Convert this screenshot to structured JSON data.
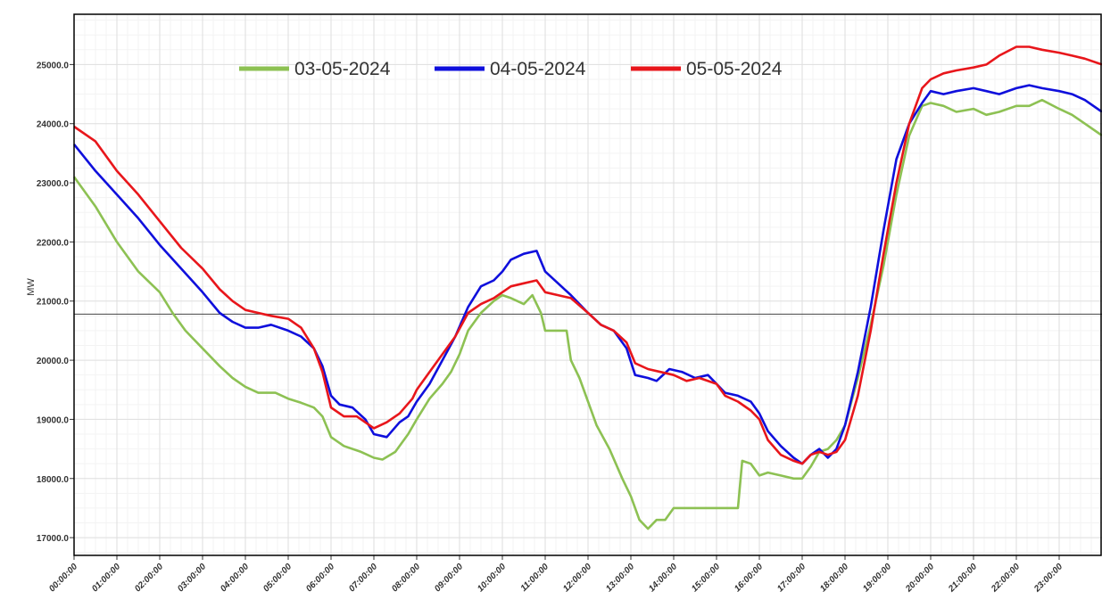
{
  "chart_data": {
    "type": "line",
    "title": "",
    "xlabel": "",
    "ylabel": "MW",
    "x_tick_labels": [
      "00:00:00",
      "01:00:00",
      "02:00:00",
      "03:00:00",
      "04:00:00",
      "05:00:00",
      "06:00:00",
      "07:00:00",
      "08:00:00",
      "09:00:00",
      "10:00:00",
      "11:00:00",
      "12:00:00",
      "13:00:00",
      "14:00:00",
      "15:00:00",
      "16:00:00",
      "17:00:00",
      "18:00:00",
      "19:00:00",
      "20:00:00",
      "21:00:00",
      "22:00:00",
      "23:00:00"
    ],
    "y_tick_labels": [
      "17000.0",
      "18000.0",
      "19000.0",
      "20000.0",
      "21000.0",
      "22000.0",
      "23000.0",
      "24000.0",
      "25000.0"
    ],
    "xlim": [
      0,
      24
    ],
    "ylim": [
      16700,
      25850
    ],
    "grid": true,
    "legend_position": "top",
    "reference_line": 20780,
    "series": [
      {
        "name": "03-05-2024",
        "color": "#8dc153",
        "points": [
          [
            0,
            23100
          ],
          [
            0.5,
            22600
          ],
          [
            1,
            22000
          ],
          [
            1.5,
            21500
          ],
          [
            2,
            21150
          ],
          [
            2.3,
            20800
          ],
          [
            2.6,
            20500
          ],
          [
            3,
            20200
          ],
          [
            3.4,
            19900
          ],
          [
            3.7,
            19700
          ],
          [
            4,
            19550
          ],
          [
            4.3,
            19450
          ],
          [
            4.7,
            19450
          ],
          [
            5,
            19350
          ],
          [
            5.3,
            19280
          ],
          [
            5.6,
            19200
          ],
          [
            5.8,
            19050
          ],
          [
            6,
            18700
          ],
          [
            6.3,
            18550
          ],
          [
            6.7,
            18450
          ],
          [
            7,
            18350
          ],
          [
            7.2,
            18320
          ],
          [
            7.5,
            18450
          ],
          [
            7.8,
            18750
          ],
          [
            8,
            19000
          ],
          [
            8.3,
            19350
          ],
          [
            8.6,
            19600
          ],
          [
            8.8,
            19800
          ],
          [
            9,
            20100
          ],
          [
            9.2,
            20500
          ],
          [
            9.5,
            20800
          ],
          [
            9.8,
            21000
          ],
          [
            10,
            21100
          ],
          [
            10.2,
            21050
          ],
          [
            10.5,
            20950
          ],
          [
            10.7,
            21100
          ],
          [
            10.9,
            20800
          ],
          [
            11,
            20500
          ],
          [
            11.3,
            20500
          ],
          [
            11.5,
            20500
          ],
          [
            11.6,
            20000
          ],
          [
            11.8,
            19700
          ],
          [
            12,
            19300
          ],
          [
            12.2,
            18900
          ],
          [
            12.5,
            18500
          ],
          [
            12.8,
            18000
          ],
          [
            13,
            17700
          ],
          [
            13.2,
            17300
          ],
          [
            13.4,
            17150
          ],
          [
            13.6,
            17300
          ],
          [
            13.8,
            17300
          ],
          [
            14,
            17500
          ],
          [
            14.3,
            17500
          ],
          [
            14.7,
            17500
          ],
          [
            15,
            17500
          ],
          [
            15.2,
            17500
          ],
          [
            15.5,
            17500
          ],
          [
            15.6,
            18300
          ],
          [
            15.8,
            18250
          ],
          [
            16,
            18050
          ],
          [
            16.2,
            18100
          ],
          [
            16.5,
            18050
          ],
          [
            16.8,
            18000
          ],
          [
            17,
            18000
          ],
          [
            17.2,
            18200
          ],
          [
            17.4,
            18450
          ],
          [
            17.6,
            18500
          ],
          [
            17.8,
            18650
          ],
          [
            18,
            18900
          ],
          [
            18.3,
            19700
          ],
          [
            18.6,
            20600
          ],
          [
            18.9,
            21600
          ],
          [
            19.2,
            22800
          ],
          [
            19.5,
            23800
          ],
          [
            19.8,
            24300
          ],
          [
            20,
            24350
          ],
          [
            20.3,
            24300
          ],
          [
            20.6,
            24200
          ],
          [
            21,
            24250
          ],
          [
            21.3,
            24150
          ],
          [
            21.6,
            24200
          ],
          [
            22,
            24300
          ],
          [
            22.3,
            24300
          ],
          [
            22.6,
            24400
          ],
          [
            23,
            24250
          ],
          [
            23.3,
            24150
          ],
          [
            23.6,
            24000
          ],
          [
            24,
            23800
          ]
        ]
      },
      {
        "name": "04-05-2024",
        "color": "#0f0fdc",
        "points": [
          [
            0,
            23650
          ],
          [
            0.5,
            23200
          ],
          [
            1,
            22800
          ],
          [
            1.5,
            22400
          ],
          [
            2,
            21950
          ],
          [
            2.5,
            21550
          ],
          [
            3,
            21150
          ],
          [
            3.4,
            20800
          ],
          [
            3.7,
            20650
          ],
          [
            4,
            20550
          ],
          [
            4.3,
            20550
          ],
          [
            4.6,
            20600
          ],
          [
            5,
            20500
          ],
          [
            5.3,
            20400
          ],
          [
            5.6,
            20200
          ],
          [
            5.8,
            19900
          ],
          [
            6,
            19400
          ],
          [
            6.2,
            19250
          ],
          [
            6.5,
            19200
          ],
          [
            6.8,
            19000
          ],
          [
            7,
            18750
          ],
          [
            7.3,
            18700
          ],
          [
            7.6,
            18950
          ],
          [
            7.8,
            19050
          ],
          [
            8,
            19300
          ],
          [
            8.3,
            19600
          ],
          [
            8.6,
            20000
          ],
          [
            8.9,
            20400
          ],
          [
            9.2,
            20900
          ],
          [
            9.5,
            21250
          ],
          [
            9.8,
            21350
          ],
          [
            10,
            21500
          ],
          [
            10.2,
            21700
          ],
          [
            10.5,
            21800
          ],
          [
            10.8,
            21850
          ],
          [
            11,
            21500
          ],
          [
            11.3,
            21300
          ],
          [
            11.6,
            21100
          ],
          [
            12,
            20800
          ],
          [
            12.3,
            20600
          ],
          [
            12.6,
            20500
          ],
          [
            12.9,
            20200
          ],
          [
            13.1,
            19750
          ],
          [
            13.4,
            19700
          ],
          [
            13.6,
            19650
          ],
          [
            13.9,
            19850
          ],
          [
            14.2,
            19800
          ],
          [
            14.5,
            19700
          ],
          [
            14.8,
            19750
          ],
          [
            15,
            19600
          ],
          [
            15.2,
            19450
          ],
          [
            15.5,
            19400
          ],
          [
            15.8,
            19300
          ],
          [
            16,
            19100
          ],
          [
            16.2,
            18800
          ],
          [
            16.5,
            18550
          ],
          [
            16.8,
            18350
          ],
          [
            17,
            18250
          ],
          [
            17.2,
            18400
          ],
          [
            17.4,
            18500
          ],
          [
            17.6,
            18350
          ],
          [
            17.8,
            18500
          ],
          [
            18,
            18900
          ],
          [
            18.3,
            19800
          ],
          [
            18.6,
            20900
          ],
          [
            18.9,
            22200
          ],
          [
            19.2,
            23400
          ],
          [
            19.5,
            24000
          ],
          [
            19.8,
            24350
          ],
          [
            20,
            24550
          ],
          [
            20.3,
            24500
          ],
          [
            20.6,
            24550
          ],
          [
            21,
            24600
          ],
          [
            21.3,
            24550
          ],
          [
            21.6,
            24500
          ],
          [
            22,
            24600
          ],
          [
            22.3,
            24650
          ],
          [
            22.6,
            24600
          ],
          [
            23,
            24550
          ],
          [
            23.3,
            24500
          ],
          [
            23.6,
            24400
          ],
          [
            24,
            24200
          ]
        ]
      },
      {
        "name": "05-05-2024",
        "color": "#e8161b",
        "points": [
          [
            0,
            23950
          ],
          [
            0.5,
            23700
          ],
          [
            1,
            23200
          ],
          [
            1.5,
            22800
          ],
          [
            2,
            22350
          ],
          [
            2.5,
            21900
          ],
          [
            3,
            21550
          ],
          [
            3.4,
            21200
          ],
          [
            3.7,
            21000
          ],
          [
            4,
            20850
          ],
          [
            4.3,
            20800
          ],
          [
            4.6,
            20750
          ],
          [
            5,
            20700
          ],
          [
            5.3,
            20550
          ],
          [
            5.6,
            20200
          ],
          [
            5.8,
            19800
          ],
          [
            6,
            19200
          ],
          [
            6.3,
            19050
          ],
          [
            6.6,
            19050
          ],
          [
            6.9,
            18900
          ],
          [
            7,
            18850
          ],
          [
            7.3,
            18950
          ],
          [
            7.6,
            19100
          ],
          [
            7.9,
            19350
          ],
          [
            8,
            19500
          ],
          [
            8.3,
            19800
          ],
          [
            8.6,
            20100
          ],
          [
            8.9,
            20400
          ],
          [
            9.2,
            20800
          ],
          [
            9.5,
            20950
          ],
          [
            9.8,
            21050
          ],
          [
            10,
            21150
          ],
          [
            10.2,
            21250
          ],
          [
            10.5,
            21300
          ],
          [
            10.8,
            21350
          ],
          [
            11,
            21150
          ],
          [
            11.3,
            21100
          ],
          [
            11.6,
            21050
          ],
          [
            12,
            20800
          ],
          [
            12.3,
            20600
          ],
          [
            12.6,
            20500
          ],
          [
            12.9,
            20300
          ],
          [
            13.1,
            19950
          ],
          [
            13.4,
            19850
          ],
          [
            13.7,
            19800
          ],
          [
            14,
            19750
          ],
          [
            14.3,
            19650
          ],
          [
            14.6,
            19700
          ],
          [
            15,
            19600
          ],
          [
            15.2,
            19400
          ],
          [
            15.5,
            19300
          ],
          [
            15.8,
            19150
          ],
          [
            16,
            19000
          ],
          [
            16.2,
            18650
          ],
          [
            16.5,
            18400
          ],
          [
            16.8,
            18300
          ],
          [
            17,
            18250
          ],
          [
            17.2,
            18400
          ],
          [
            17.4,
            18450
          ],
          [
            17.6,
            18400
          ],
          [
            17.8,
            18450
          ],
          [
            18,
            18650
          ],
          [
            18.3,
            19400
          ],
          [
            18.6,
            20500
          ],
          [
            18.9,
            21800
          ],
          [
            19.2,
            23000
          ],
          [
            19.5,
            24000
          ],
          [
            19.8,
            24600
          ],
          [
            20,
            24750
          ],
          [
            20.3,
            24850
          ],
          [
            20.6,
            24900
          ],
          [
            21,
            24950
          ],
          [
            21.3,
            25000
          ],
          [
            21.6,
            25150
          ],
          [
            22,
            25300
          ],
          [
            22.3,
            25300
          ],
          [
            22.6,
            25250
          ],
          [
            23,
            25200
          ],
          [
            23.3,
            25150
          ],
          [
            23.6,
            25100
          ],
          [
            24,
            25000
          ]
        ]
      }
    ]
  }
}
